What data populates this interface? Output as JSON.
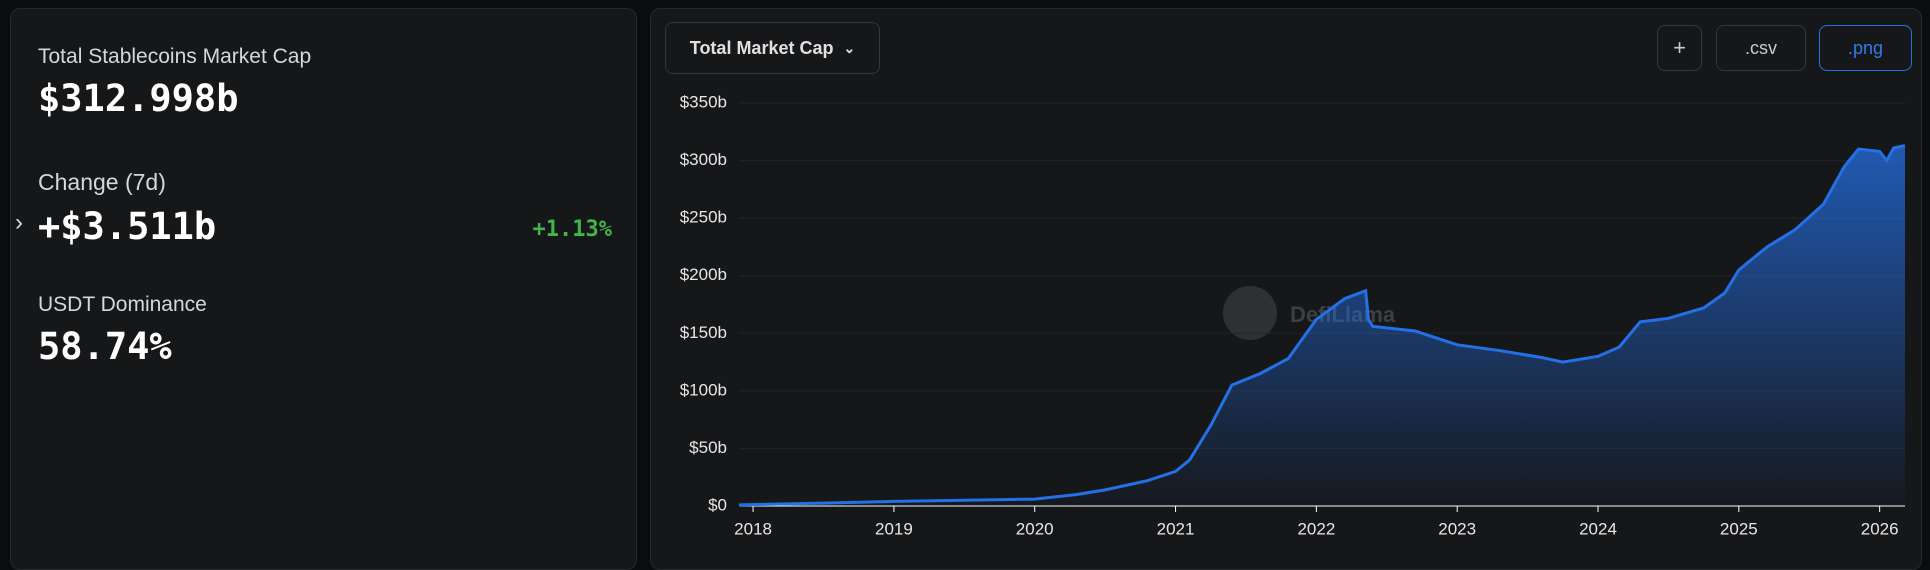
{
  "summary": {
    "market_cap_label": "Total Stablecoins Market Cap",
    "market_cap": "$312.998b",
    "change_label": "Change (7d)",
    "change": "+$3.511b",
    "change_pct": "+1.13%",
    "dominance_label": "USDT Dominance",
    "dominance": "58.74%"
  },
  "toolbar": {
    "dropdown": "Total Market Cap",
    "add": "+",
    "csv": ".csv",
    "png": ".png"
  },
  "watermark": "DefiLlama",
  "chart_data": {
    "type": "area",
    "color": "#2470e6",
    "x": [
      2017.9,
      2018.5,
      2019.0,
      2019.5,
      2020.0,
      2020.3,
      2020.5,
      2020.8,
      2021.0,
      2021.1,
      2021.25,
      2021.4,
      2021.6,
      2021.8,
      2021.9,
      2022.0,
      2022.2,
      2022.35,
      2022.37,
      2022.4,
      2022.7,
      2023.0,
      2023.3,
      2023.6,
      2023.75,
      2024.0,
      2024.15,
      2024.3,
      2024.5,
      2024.75,
      2024.9,
      2025.0,
      2025.2,
      2025.4,
      2025.6,
      2025.75,
      2025.85,
      2026.0,
      2026.05,
      2026.1,
      2026.18
    ],
    "series": [
      {
        "name": "Total Market Cap",
        "values": [
          1,
          2.5,
          4,
          5,
          6,
          10,
          14,
          22,
          30,
          40,
          70,
          105,
          115,
          128,
          145,
          162,
          180,
          187,
          162,
          156,
          152,
          140,
          135,
          129,
          125,
          130,
          138,
          160,
          163,
          172,
          185,
          205,
          225,
          240,
          262,
          295,
          310,
          308,
          300,
          311,
          313
        ]
      }
    ],
    "xlim": [
      2017.9,
      2026.18
    ],
    "xticks": [
      2018,
      2019,
      2020,
      2021,
      2022,
      2023,
      2024,
      2025,
      2026
    ],
    "ylim": [
      0,
      350
    ],
    "yticks": [
      {
        "value": 0,
        "label": "$0"
      },
      {
        "value": 50,
        "label": "$50b"
      },
      {
        "value": 100,
        "label": "$100b"
      },
      {
        "value": 150,
        "label": "$150b"
      },
      {
        "value": 200,
        "label": "$200b"
      },
      {
        "value": 250,
        "label": "$250b"
      },
      {
        "value": 300,
        "label": "$300b"
      },
      {
        "value": 350,
        "label": "$350b"
      }
    ],
    "grid": true
  }
}
